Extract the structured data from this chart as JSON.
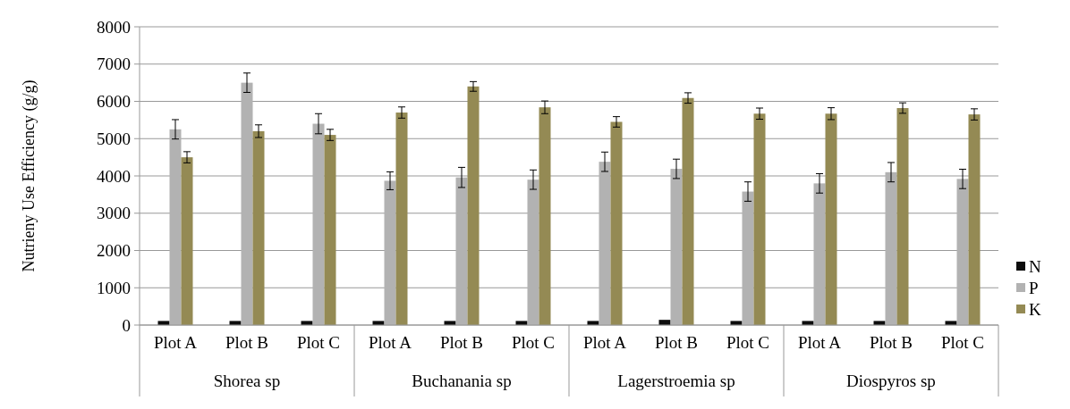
{
  "chart_data": {
    "type": "bar",
    "ylabel": "Nutrieny Use Efficiency (g/g)",
    "categories": [
      "Plot A",
      "Plot B",
      "Plot C",
      "Plot A",
      "Plot B",
      "Plot C",
      "Plot A",
      "Plot B",
      "Plot C",
      "Plot A",
      "Plot B",
      "Plot C"
    ],
    "annotations": [
      "Shorea sp",
      "Buchanania sp",
      "Lagerstroemia sp",
      "Diospyros sp"
    ],
    "series": [
      {
        "name": "N",
        "color": "#0d0d0d",
        "values": [
          110,
          110,
          110,
          110,
          110,
          110,
          110,
          140,
          110,
          110,
          110,
          110
        ]
      },
      {
        "name": "P",
        "color": "#b2b2b2",
        "values": [
          5250,
          6500,
          5400,
          3870,
          3960,
          3900,
          4380,
          4190,
          3580,
          3800,
          4100,
          3920
        ],
        "errors": [
          260,
          260,
          270,
          240,
          270,
          260,
          260,
          260,
          260,
          260,
          260,
          260
        ]
      },
      {
        "name": "K",
        "color": "#948a54",
        "values": [
          4500,
          5200,
          5100,
          5700,
          6400,
          5840,
          5450,
          6090,
          5670,
          5670,
          5820,
          5650
        ],
        "errors": [
          150,
          170,
          150,
          150,
          130,
          170,
          140,
          140,
          150,
          160,
          140,
          150
        ]
      }
    ],
    "ylim": [
      0,
      8000
    ],
    "yticks": [
      0,
      1000,
      2000,
      3000,
      4000,
      5000,
      6000,
      7000,
      8000
    ],
    "grid": "y",
    "legend": "right"
  }
}
